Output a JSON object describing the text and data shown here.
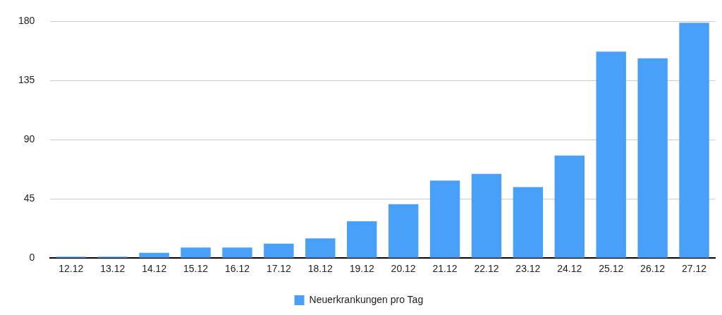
{
  "chart_data": {
    "type": "bar",
    "categories": [
      "12.12",
      "13.12",
      "14.12",
      "15.12",
      "16.12",
      "17.12",
      "18.12",
      "19.12",
      "20.12",
      "21.12",
      "22.12",
      "23.12",
      "24.12",
      "25.12",
      "26.12",
      "27.12"
    ],
    "series": [
      {
        "name": "Neuerkrankungen pro Tag",
        "color": "#48a0f8",
        "values": [
          1,
          1,
          4,
          8,
          8,
          11,
          15,
          28,
          41,
          59,
          64,
          54,
          78,
          157,
          152,
          179
        ]
      }
    ],
    "ylim": [
      0,
      180
    ],
    "yticks": [
      0,
      45,
      90,
      135,
      180
    ],
    "grid": "y",
    "legend": "bottom"
  }
}
